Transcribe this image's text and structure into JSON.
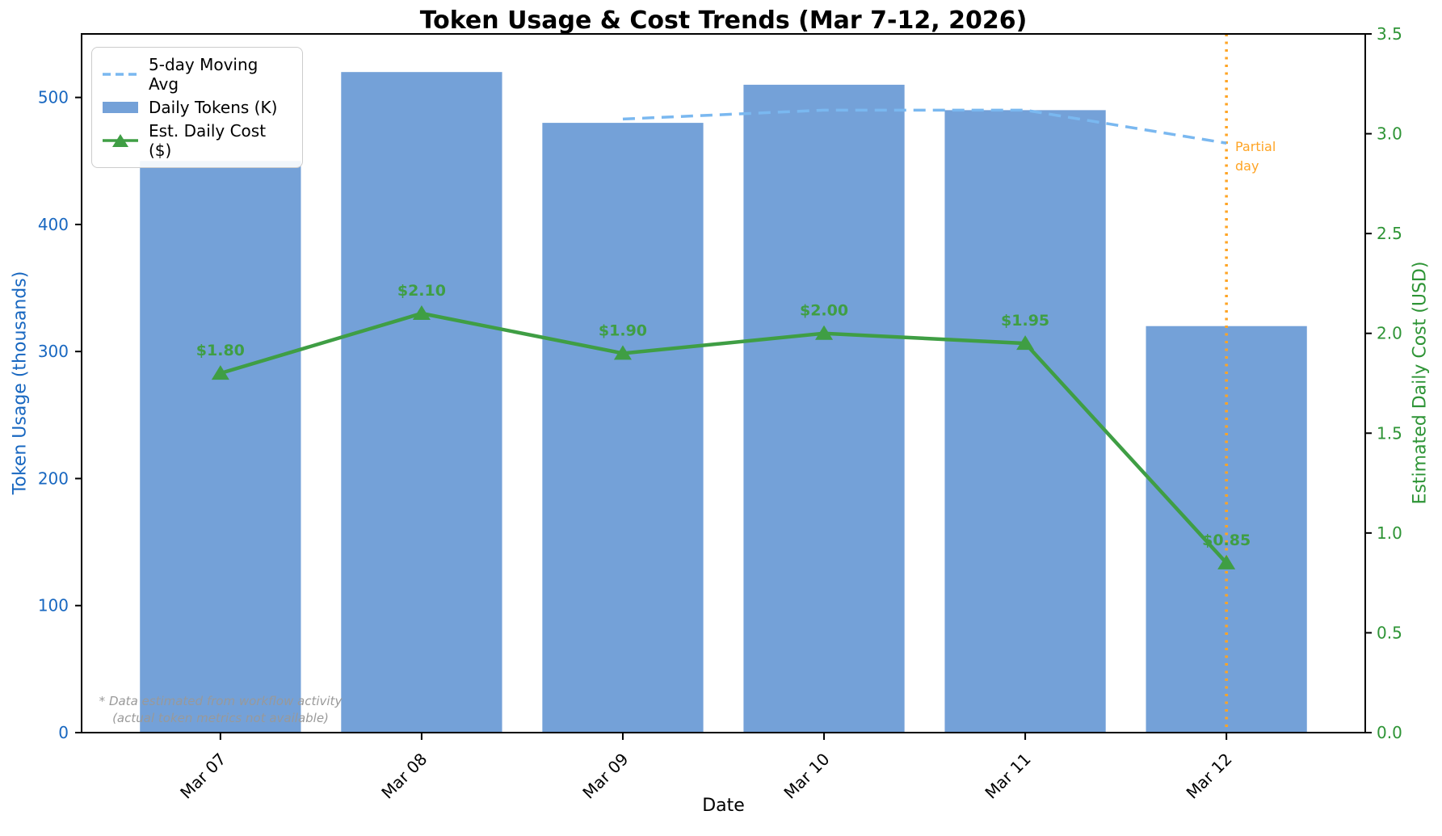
{
  "figure": {
    "title": "Token Usage & Cost Trends (Mar 7-12, 2026)",
    "xlabel": "Date",
    "ylabel_left": "Token Usage (thousands)",
    "ylabel_right": "Estimated Daily Cost (USD)",
    "footnote_line1": "* Data estimated from workflow activity",
    "footnote_line2": "(actual token metrics not available)",
    "annotation": "Partial day"
  },
  "legend": {
    "items": [
      {
        "label": "5-day Moving Avg"
      },
      {
        "label": "Daily Tokens (K)"
      },
      {
        "label": "Est. Daily Cost ($)"
      }
    ]
  },
  "colors": {
    "bar": "#74a1d8",
    "moving_avg": "#7ab8f0",
    "cost_line": "#3f9e44",
    "left_axis": "#1867c0",
    "right_axis": "#2e9436",
    "bottom_axis": "#000000",
    "vline": "#ffa424",
    "footnote": "#999999"
  },
  "chart_data": {
    "type": "bar",
    "title": "Token Usage & Cost Trends (Mar 7-12, 2026)",
    "xlabel": "Date",
    "ylabel_left": "Token Usage (thousands)",
    "ylabel_right": "Estimated Daily Cost (USD)",
    "categories": [
      "Mar 07",
      "Mar 08",
      "Mar 09",
      "Mar 10",
      "Mar 11",
      "Mar 12"
    ],
    "series": [
      {
        "name": "Daily Tokens (K)",
        "type": "bar",
        "axis": "left",
        "values": [
          450,
          520,
          480,
          510,
          490,
          320
        ]
      },
      {
        "name": "5-day Moving Avg",
        "type": "dashed-line",
        "axis": "left",
        "values": [
          null,
          null,
          483,
          490,
          490,
          464
        ]
      },
      {
        "name": "Est. Daily Cost ($)",
        "type": "line-with-triangle-markers",
        "axis": "right",
        "values": [
          1.8,
          2.1,
          1.9,
          2.0,
          1.95,
          0.85
        ],
        "point_labels": [
          "$1.80",
          "$2.10",
          "$1.90",
          "$2.00",
          "$1.95",
          "$0.85"
        ]
      }
    ],
    "ylim_left": [
      0,
      550
    ],
    "yticks_left": [
      0,
      100,
      200,
      300,
      400,
      500
    ],
    "ylim_right": [
      0,
      3.5
    ],
    "yticks_right": [
      0.0,
      0.5,
      1.0,
      1.5,
      2.0,
      2.5,
      3.0,
      3.5
    ],
    "grid": false,
    "legend_position": "upper-left",
    "vline": {
      "category": "Mar 12",
      "style": "dotted",
      "label": "Partial day"
    }
  }
}
